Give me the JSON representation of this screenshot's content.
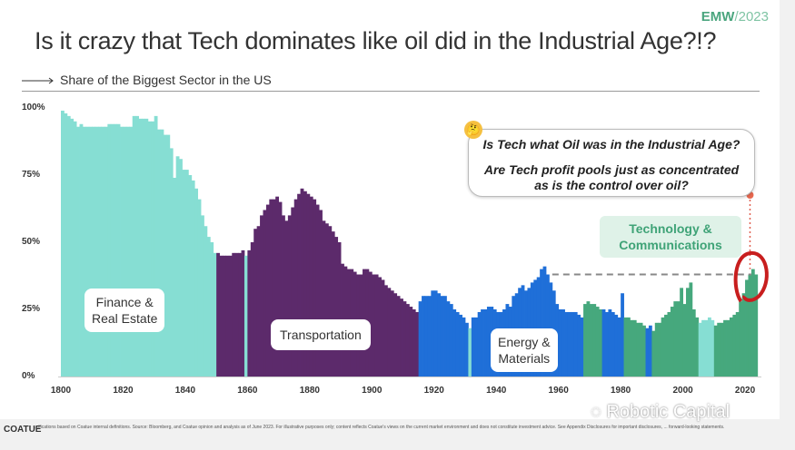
{
  "header": {
    "title": "Is it crazy that Tech dominates like oil did in the Industrial Age?!?",
    "brand": "EMW",
    "brand_year": "/2023",
    "subtitle": "Share of the Biggest Sector in the US"
  },
  "callout": {
    "line1": "Is Tech what Oil was in the Industrial Age?",
    "line2": "Are Tech profit pools just as concentrated",
    "line3": "as is the control over oil?",
    "emoji": "🤔"
  },
  "labels": {
    "finance": [
      "Finance &",
      "Real Estate"
    ],
    "transport": "Transportation",
    "energy": [
      "Energy &",
      "Materials"
    ],
    "tech": [
      "Technology &",
      "Communications"
    ]
  },
  "footer": {
    "logo": "COATUE",
    "note": "...ifications based on Coatue internal definitions. Source: Bloomberg, and Coatue opinion and analysis as of June 2023. For illustrative purposes only; content reflects Coatue's views on the current market environment and does not constitute investment advice. See Appendix Disclosures for important disclosures, ... forward-looking statements.",
    "watermark": "Robotic Capital"
  },
  "chart_data": {
    "type": "bar",
    "title": "Share of the Biggest Sector in the US",
    "xlabel": "",
    "ylabel": "",
    "ylim": [
      0,
      100
    ],
    "xlim": [
      1800,
      2023
    ],
    "yticks": [
      "0%",
      "25%",
      "50%",
      "75%",
      "100%"
    ],
    "ytick_values": [
      0,
      25,
      50,
      75,
      100
    ],
    "xticks": [
      1800,
      1820,
      1840,
      1860,
      1880,
      1900,
      1920,
      1940,
      1960,
      1980,
      2000,
      2020
    ],
    "colors": {
      "finance": "#86ded3",
      "transport": "#5c2a6b",
      "energy": "#1f6fd8",
      "tech": "#46a87d"
    },
    "segments": [
      {
        "sector": "finance",
        "start": 1800,
        "values": [
          99,
          98,
          97,
          96,
          95,
          93,
          94,
          93,
          93,
          93,
          93,
          93,
          93,
          93,
          93,
          94,
          94,
          94,
          94,
          93,
          93,
          93,
          93,
          97,
          97,
          96,
          96,
          96,
          95,
          95,
          97,
          92,
          92,
          90,
          90,
          85,
          74,
          82,
          81,
          77,
          77,
          75,
          73,
          70,
          66,
          60,
          56,
          52,
          50,
          46
        ]
      },
      {
        "sector": "transport",
        "start": 1850,
        "values": [
          46,
          45,
          45,
          45,
          45,
          46,
          46,
          46,
          47
        ]
      },
      {
        "sector": "finance",
        "start": 1859,
        "values": [
          45
        ]
      },
      {
        "sector": "transport",
        "start": 1860,
        "values": [
          47,
          50,
          55,
          56,
          60,
          62,
          64,
          66,
          66,
          67,
          65,
          60,
          58,
          60,
          63,
          66,
          68,
          70,
          69,
          68,
          67,
          66,
          64,
          62,
          58,
          57,
          56,
          54,
          52,
          50,
          42,
          41,
          40,
          40,
          39,
          38,
          38,
          40,
          40,
          39,
          38,
          38,
          37,
          36,
          34,
          33,
          32,
          31,
          30,
          29,
          28,
          27,
          26,
          25,
          24
        ]
      },
      {
        "sector": "energy",
        "start": 1915,
        "values": [
          28,
          30,
          30,
          30,
          32,
          32,
          31,
          30,
          30,
          28,
          27,
          25,
          24,
          23,
          22,
          20
        ]
      },
      {
        "sector": "finance",
        "start": 1931,
        "values": [
          18
        ]
      },
      {
        "sector": "energy",
        "start": 1932,
        "values": [
          22,
          22,
          24,
          25,
          25,
          26,
          26,
          25,
          24,
          24,
          25,
          27,
          26,
          30,
          31,
          33,
          34,
          32,
          33,
          35,
          36,
          37,
          40,
          41,
          38,
          35,
          32,
          27,
          25,
          25,
          24,
          24,
          24,
          24,
          23,
          22
        ]
      },
      {
        "sector": "tech",
        "start": 1968,
        "values": [
          27,
          28,
          27,
          27,
          26,
          25
        ]
      },
      {
        "sector": "energy",
        "start": 1974,
        "values": [
          25,
          24,
          25,
          24,
          23,
          22,
          31
        ]
      },
      {
        "sector": "tech",
        "start": 1981,
        "values": [
          22,
          22,
          21,
          21,
          20,
          20,
          19
        ]
      },
      {
        "sector": "energy",
        "start": 1988,
        "values": [
          18,
          19
        ]
      },
      {
        "sector": "tech",
        "start": 1990,
        "values": [
          17,
          20,
          20,
          22,
          23,
          24,
          26,
          28,
          28,
          33,
          27,
          33,
          35,
          25,
          22
        ]
      },
      {
        "sector": "finance",
        "start": 2005,
        "values": [
          20,
          21,
          21,
          22,
          21
        ]
      },
      {
        "sector": "tech",
        "start": 2010,
        "values": [
          19,
          20,
          20,
          21,
          21,
          22,
          23,
          24,
          28,
          31,
          36,
          38,
          40,
          38
        ]
      }
    ],
    "reference_line": {
      "value": 38,
      "from": 1958,
      "to": 2022,
      "style": "dashed"
    },
    "highlight_year": 2021
  }
}
